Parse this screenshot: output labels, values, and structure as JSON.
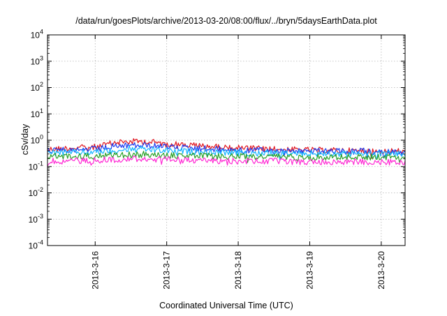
{
  "chart_data": {
    "type": "line",
    "title": "/data/run/goesPlots/archive/2013-03-20/08:00/flux/../bryn/5daysEarthData.plot",
    "xlabel": "Coordinated Universal Time (UTC)",
    "ylabel": "cSv/day",
    "yscale": "log",
    "ylim": [
      0.0001,
      10000
    ],
    "y_ticks": [
      {
        "base": "10",
        "exp": "-4",
        "value": 0.0001
      },
      {
        "base": "10",
        "exp": "-3",
        "value": 0.001
      },
      {
        "base": "10",
        "exp": "-2",
        "value": 0.01
      },
      {
        "base": "10",
        "exp": "-1",
        "value": 0.1
      },
      {
        "base": "10",
        "exp": "0",
        "value": 1
      },
      {
        "base": "10",
        "exp": "1",
        "value": 10
      },
      {
        "base": "10",
        "exp": "2",
        "value": 100
      },
      {
        "base": "10",
        "exp": "3",
        "value": 1000
      },
      {
        "base": "10",
        "exp": "4",
        "value": 10000
      }
    ],
    "xlim": [
      "2013-03-15T08:00",
      "2013-03-20T08:00"
    ],
    "x_ticks": [
      {
        "label": "2013-3-16",
        "value": "2013-03-16T00:00"
      },
      {
        "label": "2013-3-17",
        "value": "2013-03-17T00:00"
      },
      {
        "label": "2013-3-18",
        "value": "2013-03-18T00:00"
      },
      {
        "label": "2013-3-19",
        "value": "2013-03-19T00:00"
      },
      {
        "label": "2013-3-20",
        "value": "2013-03-20T00:00"
      }
    ],
    "grid": true,
    "legend": "none",
    "series": [
      {
        "color": "#e0141e",
        "x": [
          "2013-03-15T08:00",
          "2013-03-16T00:00",
          "2013-03-16T08:00",
          "2013-03-16T16:00",
          "2013-03-17T00:00",
          "2013-03-17T12:00",
          "2013-03-18T00:00",
          "2013-03-18T12:00",
          "2013-03-19T00:00",
          "2013-03-19T12:00",
          "2013-03-20T00:00",
          "2013-03-20T08:00"
        ],
        "values": [
          0.45,
          0.55,
          0.85,
          0.9,
          0.75,
          0.6,
          0.5,
          0.45,
          0.42,
          0.4,
          0.38,
          0.38
        ]
      },
      {
        "color": "#1e3cf0",
        "x": [
          "2013-03-15T08:00",
          "2013-03-16T00:00",
          "2013-03-16T08:00",
          "2013-03-16T16:00",
          "2013-03-17T00:00",
          "2013-03-17T12:00",
          "2013-03-18T00:00",
          "2013-03-18T12:00",
          "2013-03-19T00:00",
          "2013-03-19T12:00",
          "2013-03-20T00:00",
          "2013-03-20T08:00"
        ],
        "values": [
          0.4,
          0.45,
          0.6,
          0.65,
          0.55,
          0.48,
          0.42,
          0.4,
          0.38,
          0.37,
          0.35,
          0.35
        ]
      },
      {
        "color": "#14b4ff",
        "x": [
          "2013-03-15T08:00",
          "2013-03-16T00:00",
          "2013-03-16T08:00",
          "2013-03-16T16:00",
          "2013-03-17T00:00",
          "2013-03-17T12:00",
          "2013-03-18T00:00",
          "2013-03-18T12:00",
          "2013-03-19T00:00",
          "2013-03-19T12:00",
          "2013-03-20T00:00",
          "2013-03-20T08:00"
        ],
        "values": [
          0.33,
          0.35,
          0.42,
          0.45,
          0.4,
          0.36,
          0.33,
          0.32,
          0.31,
          0.3,
          0.3,
          0.3
        ]
      },
      {
        "color": "#28a028",
        "x": [
          "2013-03-15T08:00",
          "2013-03-16T00:00",
          "2013-03-16T08:00",
          "2013-03-16T16:00",
          "2013-03-17T00:00",
          "2013-03-17T12:00",
          "2013-03-18T00:00",
          "2013-03-18T12:00",
          "2013-03-19T00:00",
          "2013-03-19T12:00",
          "2013-03-20T00:00",
          "2013-03-20T08:00"
        ],
        "values": [
          0.24,
          0.25,
          0.27,
          0.28,
          0.26,
          0.25,
          0.24,
          0.24,
          0.23,
          0.23,
          0.23,
          0.23
        ]
      },
      {
        "color": "#ff2ad4",
        "x": [
          "2013-03-15T08:00",
          "2013-03-16T00:00",
          "2013-03-16T08:00",
          "2013-03-16T16:00",
          "2013-03-17T00:00",
          "2013-03-17T12:00",
          "2013-03-18T00:00",
          "2013-03-18T12:00",
          "2013-03-19T00:00",
          "2013-03-19T12:00",
          "2013-03-20T00:00",
          "2013-03-20T08:00"
        ],
        "values": [
          0.16,
          0.17,
          0.19,
          0.2,
          0.18,
          0.17,
          0.16,
          0.16,
          0.15,
          0.15,
          0.15,
          0.15
        ]
      }
    ]
  }
}
